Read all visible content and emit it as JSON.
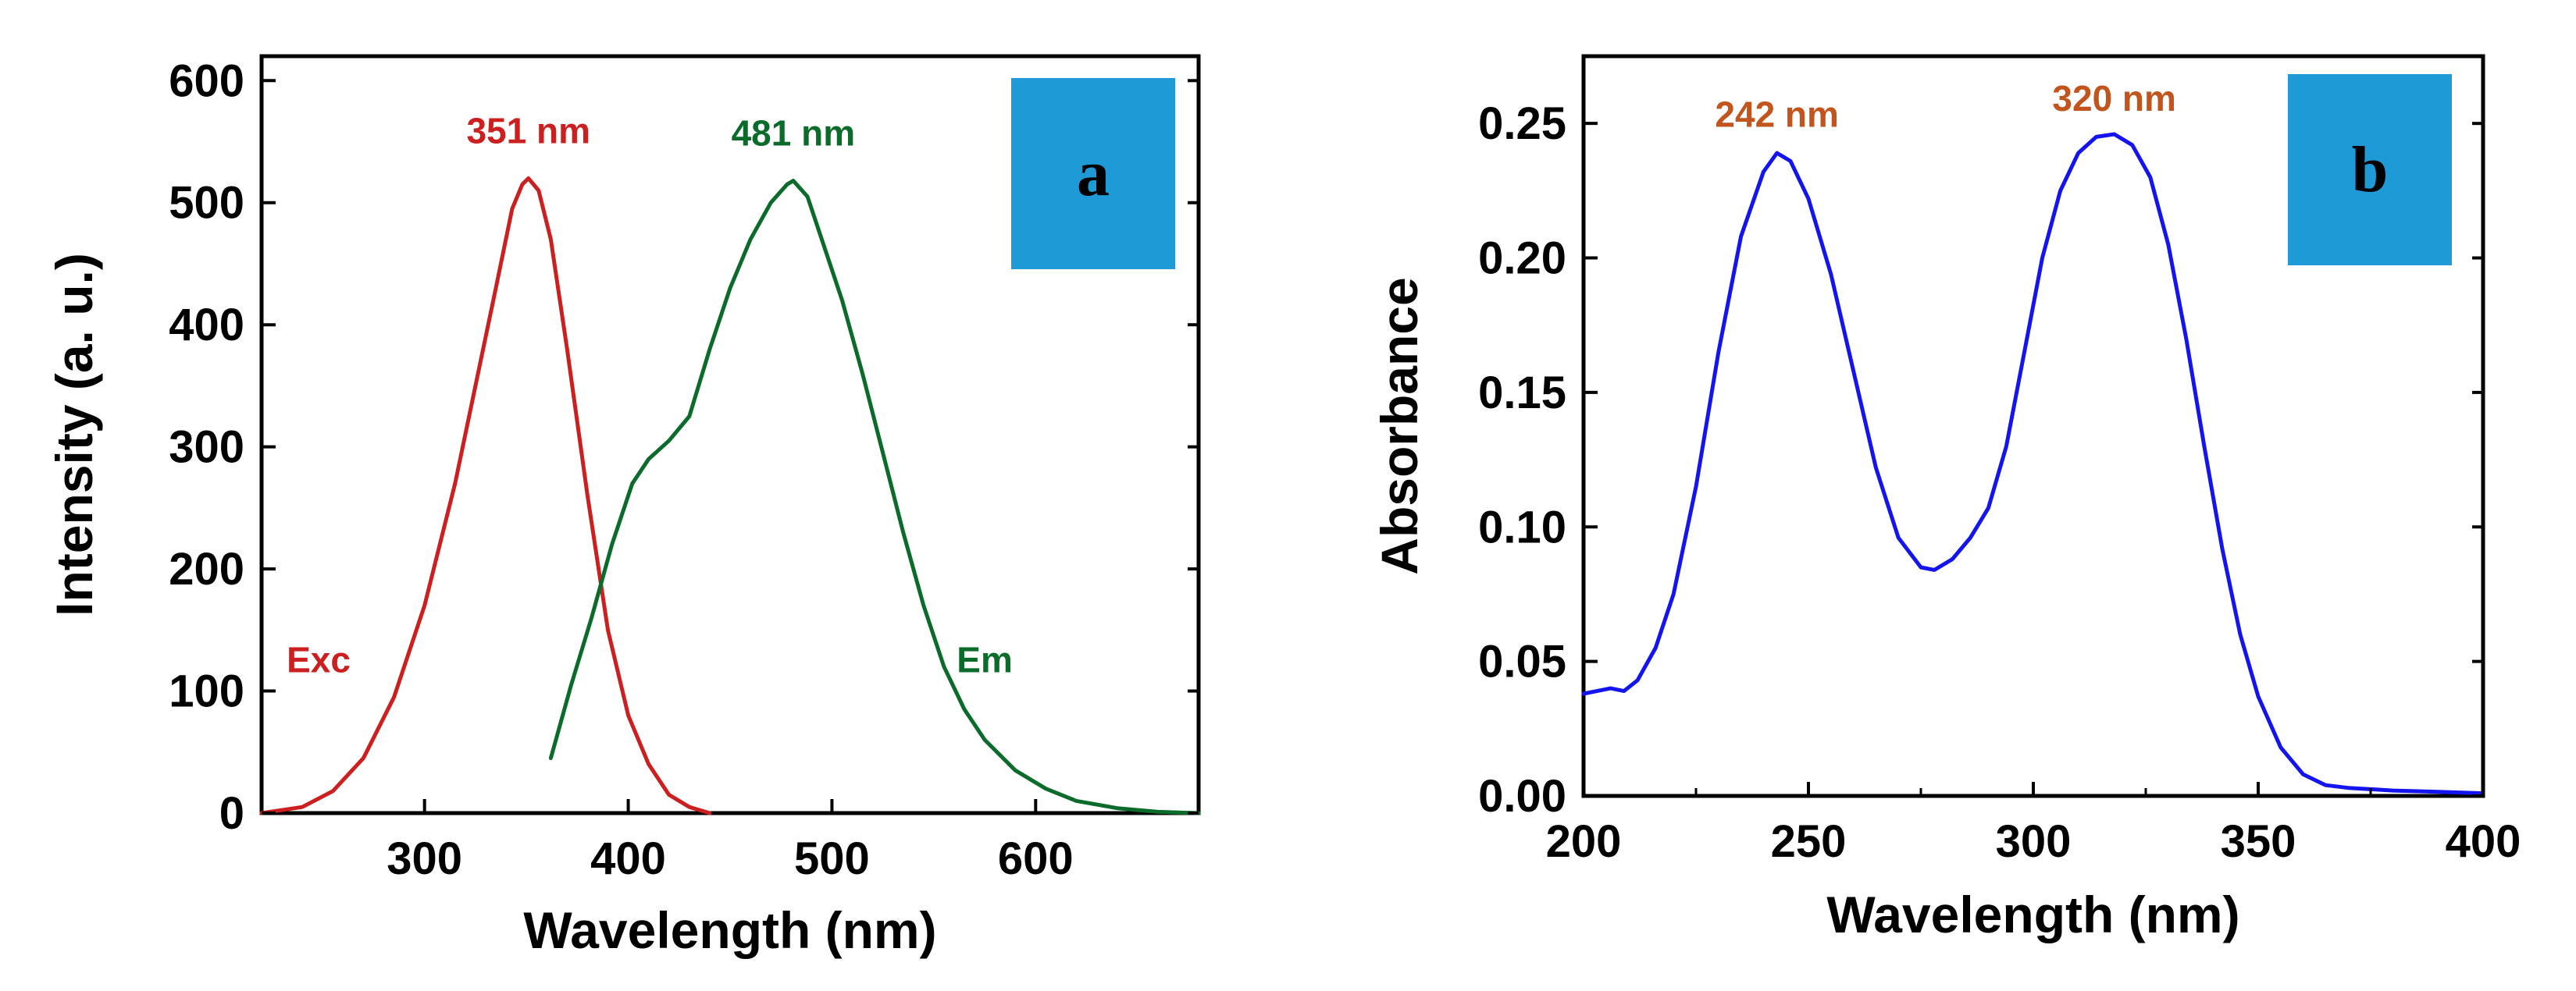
{
  "chart_data": [
    {
      "type": "line",
      "panel_label": "a",
      "panel_label_color": "#1e9ad6",
      "xlabel": "Wavelength (nm)",
      "ylabel": "Intensity (a. u.)",
      "xlim": [
        220,
        680
      ],
      "ylim": [
        0,
        620
      ],
      "xticks": [
        300,
        400,
        500,
        600
      ],
      "xtick_labels": [
        "300",
        "400",
        "500",
        "600"
      ],
      "yticks": [
        0,
        100,
        200,
        300,
        400,
        500,
        600
      ],
      "ytick_labels": [
        "0",
        "100",
        "200",
        "300",
        "400",
        "500",
        "600"
      ],
      "series": [
        {
          "name": "Exc",
          "color": "#cc1f1f",
          "peak_label": "351 nm",
          "peak_x": 351,
          "peak_y": 520,
          "label_x": 248,
          "label_y": 125,
          "x": [
            220,
            240,
            255,
            270,
            285,
            300,
            315,
            325,
            335,
            343,
            348,
            351,
            356,
            362,
            370,
            380,
            390,
            400,
            410,
            420,
            430,
            440
          ],
          "y": [
            0,
            5,
            18,
            45,
            95,
            170,
            270,
            350,
            430,
            495,
            515,
            520,
            510,
            470,
            380,
            260,
            150,
            80,
            40,
            15,
            5,
            0
          ]
        },
        {
          "name": "Em",
          "color": "#0b6b2b",
          "peak_label": "481 nm",
          "peak_x": 481,
          "peak_y": 518,
          "label_x": 575,
          "label_y": 125,
          "x": [
            362,
            372,
            382,
            392,
            402,
            410,
            420,
            430,
            440,
            450,
            460,
            470,
            478,
            481,
            488,
            495,
            505,
            515,
            525,
            535,
            545,
            555,
            565,
            575,
            590,
            605,
            620,
            640,
            660,
            680
          ],
          "y": [
            45,
            105,
            160,
            220,
            270,
            290,
            305,
            325,
            380,
            430,
            470,
            500,
            515,
            518,
            505,
            470,
            420,
            360,
            295,
            230,
            170,
            120,
            85,
            60,
            35,
            20,
            10,
            4,
            1,
            0
          ]
        }
      ]
    },
    {
      "type": "line",
      "panel_label": "b",
      "panel_label_color": "#1e9ad6",
      "xlabel": "Wavelength (nm)",
      "ylabel": "Absorbance",
      "xlim": [
        200,
        400
      ],
      "ylim": [
        0,
        0.275
      ],
      "xticks": [
        200,
        250,
        300,
        350,
        400
      ],
      "xtick_labels": [
        "200",
        "250",
        "300",
        "350",
        "400"
      ],
      "yticks": [
        0,
        0.05,
        0.1,
        0.15,
        0.2,
        0.25
      ],
      "ytick_labels": [
        "0.00",
        "0.05",
        "0.10",
        "0.15",
        "0.20",
        "0.25"
      ],
      "series": [
        {
          "name": "Absorbance",
          "color": "#1414ee",
          "peak_labels": [
            {
              "text": "242 nm",
              "x": 243,
              "y": 0.24,
              "color": "#c2541d"
            },
            {
              "text": "320 nm",
              "x": 318,
              "y": 0.246,
              "color": "#c2541d"
            }
          ],
          "x": [
            200,
            203,
            206,
            209,
            212,
            216,
            220,
            225,
            230,
            235,
            240,
            243,
            246,
            250,
            255,
            260,
            265,
            270,
            275,
            278,
            282,
            286,
            290,
            294,
            298,
            302,
            306,
            310,
            314,
            318,
            322,
            326,
            330,
            334,
            338,
            342,
            346,
            350,
            355,
            360,
            365,
            370,
            380,
            390,
            400
          ],
          "y": [
            0.038,
            0.039,
            0.04,
            0.039,
            0.043,
            0.055,
            0.075,
            0.115,
            0.165,
            0.208,
            0.232,
            0.239,
            0.236,
            0.222,
            0.194,
            0.158,
            0.122,
            0.096,
            0.085,
            0.084,
            0.088,
            0.096,
            0.107,
            0.13,
            0.165,
            0.2,
            0.225,
            0.239,
            0.245,
            0.246,
            0.242,
            0.23,
            0.205,
            0.17,
            0.13,
            0.092,
            0.06,
            0.037,
            0.018,
            0.008,
            0.004,
            0.003,
            0.002,
            0.0015,
            0.001
          ]
        }
      ]
    }
  ]
}
